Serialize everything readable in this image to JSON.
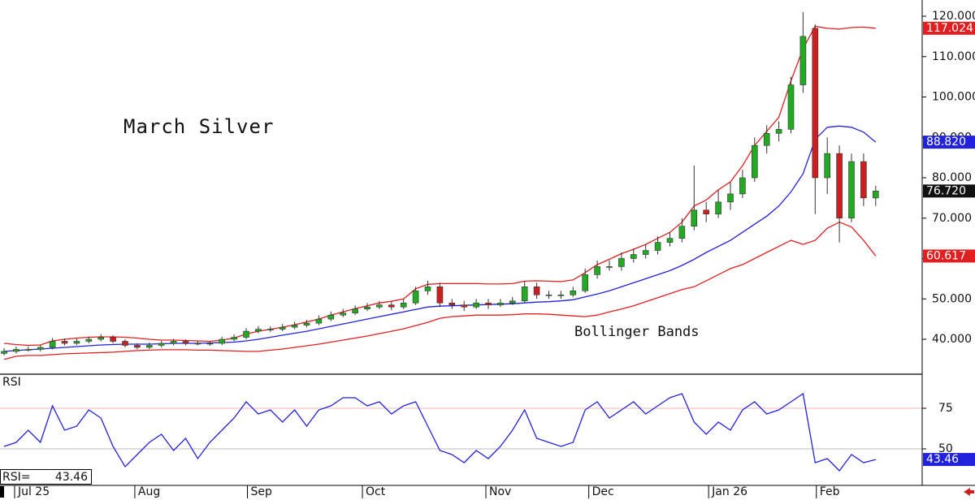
{
  "chart_data": {
    "type": "candlestick",
    "title": "March Silver",
    "annotation": "Bollinger Bands",
    "up_color": "#22aa22",
    "down_color": "#cc2020",
    "band_color": "#e02020",
    "middle_color": "#2222dd",
    "xlim": [
      -0.336,
      75.84
    ],
    "xticks": [
      {
        "value": 0.87,
        "label": "Jul 25"
      },
      {
        "value": 10.8,
        "label": "Aug"
      },
      {
        "value": 20.1,
        "label": "Sep"
      },
      {
        "value": 29.6,
        "label": "Oct"
      },
      {
        "value": 39.8,
        "label": "Nov"
      },
      {
        "value": 48.3,
        "label": "Dec"
      },
      {
        "value": 58.2,
        "label": "Jan 26"
      },
      {
        "value": 67.1,
        "label": "Feb"
      }
    ],
    "ylim": [
      31.56,
      124.02
    ],
    "yticks": [
      {
        "value": 40,
        "label": "40.000"
      },
      {
        "value": 50,
        "label": "50.000"
      },
      {
        "value": 60,
        "label": "60.000"
      },
      {
        "value": 70,
        "label": "70.000"
      },
      {
        "value": 80,
        "label": "80.000"
      },
      {
        "value": 90,
        "label": "90.000"
      },
      {
        "value": 100,
        "label": "100.000"
      },
      {
        "value": 110,
        "label": "110.000"
      },
      {
        "value": 120,
        "label": "120.000"
      }
    ],
    "open": [
      36.5,
      37,
      37.5,
      37.5,
      38,
      39.5,
      39,
      39.5,
      40,
      40.5,
      39.5,
      38.5,
      38,
      38.5,
      39,
      39.5,
      39,
      39,
      39,
      40,
      40.5,
      42,
      42.5,
      42.5,
      43,
      43.5,
      44,
      45,
      46,
      46.5,
      47.5,
      48,
      48.5,
      48,
      49,
      52,
      53,
      49,
      48.5,
      48,
      49,
      48.5,
      49,
      49.5,
      53,
      51,
      51,
      51,
      52,
      56,
      58,
      58,
      60,
      61,
      62,
      64,
      65,
      68,
      72,
      71,
      74,
      76,
      80,
      88,
      91,
      92,
      103,
      117,
      80,
      86,
      70,
      84,
      75
    ],
    "high": [
      37.8,
      38.2,
      38.2,
      38.6,
      40.3,
      40.2,
      40.2,
      40.7,
      41.3,
      41,
      40,
      39,
      39.2,
      39.6,
      40.1,
      40,
      39.6,
      39.5,
      40.6,
      41.2,
      42.8,
      43.3,
      43.2,
      43.8,
      44.3,
      44.8,
      45.9,
      46.9,
      47.5,
      48.4,
      49,
      49.5,
      49.4,
      50,
      53,
      54.5,
      54,
      50,
      49.5,
      50,
      50,
      50,
      50.5,
      54.5,
      54,
      52,
      52,
      53,
      57.5,
      59.5,
      59.5,
      61.5,
      62.5,
      63.5,
      65.5,
      66.5,
      70,
      83,
      74,
      77,
      79,
      82,
      90,
      93,
      94,
      105,
      121,
      118,
      90,
      88,
      86,
      86,
      78
    ],
    "low": [
      36,
      36.5,
      37,
      37,
      37.5,
      38.5,
      38.6,
      39,
      39.5,
      39,
      38,
      37.5,
      37.6,
      38,
      38.5,
      38.5,
      38.5,
      38.4,
      38.6,
      39.5,
      40,
      41.5,
      41.8,
      42,
      42.5,
      43,
      43.5,
      44.5,
      45.5,
      46,
      47,
      47.5,
      47.2,
      47.5,
      48.5,
      51,
      48,
      47.5,
      47,
      47.5,
      47.5,
      48,
      48.5,
      49,
      50,
      50,
      50,
      50.5,
      51.5,
      55,
      57,
      57,
      59,
      60,
      61,
      63,
      64,
      67,
      69,
      70,
      72,
      75,
      79,
      86,
      89,
      91,
      101,
      71,
      76,
      64,
      69,
      73,
      73
    ],
    "close": [
      37,
      37.5,
      37.5,
      38,
      39.5,
      39,
      39.5,
      40,
      40.5,
      39.5,
      38.5,
      38,
      38.5,
      39,
      39.5,
      39,
      39,
      39,
      40,
      40.5,
      42,
      42.5,
      42.5,
      43,
      43.5,
      44,
      45,
      46,
      46.5,
      47.5,
      48,
      48.5,
      48,
      49,
      52,
      53,
      49,
      48.5,
      48,
      49,
      48.5,
      49,
      49.5,
      53,
      51,
      51,
      51,
      52,
      56,
      58,
      58,
      60,
      61,
      62,
      64,
      65,
      68,
      72,
      71,
      74,
      76,
      80,
      88,
      91,
      92,
      103,
      115,
      80,
      86,
      70,
      84,
      75,
      76.72
    ],
    "upper_band": [
      39,
      38.7,
      38.5,
      38.6,
      39.6,
      40,
      40.3,
      40.5,
      40.6,
      40.6,
      40.5,
      40.3,
      40,
      39.8,
      39.8,
      39.7,
      39.6,
      39.5,
      39.8,
      40.3,
      41.3,
      42,
      42.5,
      43,
      43.6,
      44.3,
      45,
      46,
      46.8,
      47.6,
      48.3,
      49,
      49.4,
      50,
      52.5,
      53.6,
      53.8,
      53.8,
      53.8,
      53.8,
      53.7,
      53.7,
      53.8,
      54.4,
      54.5,
      54.4,
      54.3,
      54.7,
      56.5,
      58.5,
      59.8,
      61.2,
      62.3,
      63.5,
      65,
      66.5,
      69,
      73,
      74.5,
      77,
      79,
      83,
      88,
      91.5,
      95,
      104,
      112,
      117.5,
      117,
      116.8,
      117.2,
      117.3,
      117.024
    ],
    "middle_band": [
      37,
      37.2,
      37.4,
      37.6,
      37.8,
      38,
      38.2,
      38.4,
      38.6,
      38.7,
      38.8,
      38.8,
      38.8,
      38.9,
      39,
      39,
      39,
      39.1,
      39.2,
      39.3,
      39.6,
      40,
      40.5,
      41,
      41.5,
      42,
      42.6,
      43.2,
      43.8,
      44.4,
      45,
      45.6,
      46.2,
      46.8,
      47.4,
      48,
      48.2,
      48.3,
      48.4,
      48.5,
      48.6,
      48.7,
      48.8,
      49,
      49.2,
      49.3,
      49.5,
      49.8,
      50.5,
      51.2,
      52,
      53,
      54,
      55,
      56,
      57,
      58.3,
      59.8,
      61.5,
      63,
      64.5,
      66.5,
      68.5,
      70.5,
      73,
      76.5,
      81,
      89.5,
      92.5,
      92.8,
      92.5,
      91.3,
      88.82
    ],
    "lower_band": [
      35,
      35.8,
      36,
      36,
      36.2,
      36.4,
      36.5,
      36.6,
      36.7,
      36.8,
      37,
      37.2,
      37.3,
      37.4,
      37.4,
      37.4,
      37.3,
      37.3,
      37.2,
      37.1,
      37,
      37,
      37.3,
      37.6,
      38,
      38.4,
      38.8,
      39.3,
      39.8,
      40.3,
      40.8,
      41.4,
      42,
      42.6,
      43.4,
      44.2,
      45.2,
      45.6,
      45.8,
      46,
      46,
      46,
      46.1,
      46.3,
      46.3,
      46.2,
      46,
      45.8,
      45.6,
      46,
      46.8,
      47.5,
      48.3,
      49.3,
      50.3,
      51.3,
      52.3,
      53,
      54.5,
      56,
      57.5,
      58.5,
      60,
      61.5,
      63,
      64.5,
      63.5,
      64.5,
      67.5,
      69,
      67.8,
      64.5,
      60.617
    ],
    "last_value_labels": {
      "middle": "88.820",
      "close": "76.720"
    },
    "rsi": {
      "label": "RSI",
      "readout_label": "RSI=",
      "color": "#2222dd",
      "ylim": [
        29,
        95.5
      ],
      "yticks": [
        75,
        50
      ],
      "values": [
        51.5,
        54,
        61.5,
        54,
        76.5,
        61.5,
        64,
        74,
        69,
        51.5,
        39,
        46.5,
        54,
        59,
        49,
        56.5,
        44,
        54,
        61.5,
        69,
        79,
        71.5,
        74,
        66.5,
        74,
        64,
        74,
        76.5,
        81.5,
        81.5,
        76.5,
        79,
        71.5,
        76.5,
        79,
        64,
        49,
        46.5,
        41.5,
        49,
        44,
        51.5,
        61.5,
        74,
        56.5,
        54,
        51.5,
        54,
        74,
        79,
        69,
        74,
        79,
        71.5,
        76.5,
        81.5,
        84,
        66.5,
        59,
        66.5,
        61.5,
        74,
        79,
        71.5,
        74,
        79,
        84,
        41.5,
        44,
        36.5,
        46.5,
        41.5,
        43.46
      ]
    }
  }
}
